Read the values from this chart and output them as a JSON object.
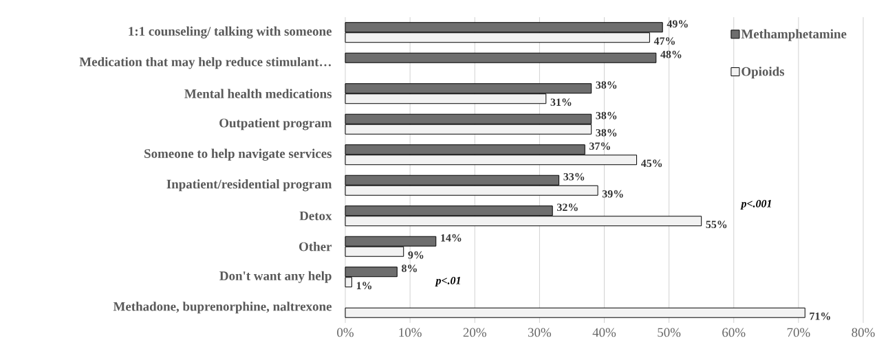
{
  "chart_data": {
    "type": "bar",
    "orientation": "horizontal",
    "categories": [
      "1:1 counseling/ talking with someone",
      "Medication that may help reduce stimulant…",
      "Mental health medications",
      "Outpatient program",
      "Someone to help navigate services",
      "Inpatient/residential program",
      "Detox",
      "Other",
      "Don't want any help",
      "Methadone, buprenorphine, naltrexone"
    ],
    "series": [
      {
        "name": "Methamphetamine",
        "color": "#6e6e6e",
        "values": [
          49,
          48,
          38,
          38,
          37,
          33,
          32,
          14,
          8,
          null
        ],
        "value_labels": [
          "49%",
          "48%",
          "38%",
          "38%",
          "37%",
          "33%",
          "32%",
          "14%",
          "8%",
          null
        ]
      },
      {
        "name": "Opioids",
        "color": "#f2f2f2",
        "values": [
          47,
          null,
          31,
          38,
          45,
          39,
          55,
          9,
          1,
          71
        ],
        "value_labels": [
          "47%",
          null,
          "31%",
          "38%",
          "45%",
          "39%",
          "55%",
          "9%",
          "1%",
          "71%"
        ]
      }
    ],
    "xlim": [
      0,
      80
    ],
    "xticks": [
      {
        "value": 0,
        "label": "0%"
      },
      {
        "value": 10,
        "label": "10%"
      },
      {
        "value": 20,
        "label": "20%"
      },
      {
        "value": 30,
        "label": "30%"
      },
      {
        "value": 40,
        "label": "40%"
      },
      {
        "value": 50,
        "label": "50%"
      },
      {
        "value": 60,
        "label": "60%"
      },
      {
        "value": 70,
        "label": "70%"
      },
      {
        "value": 80,
        "label": "80%"
      }
    ],
    "grid": "x",
    "legend": "top right",
    "annotations": [
      "p<.001",
      "p<.01"
    ]
  }
}
